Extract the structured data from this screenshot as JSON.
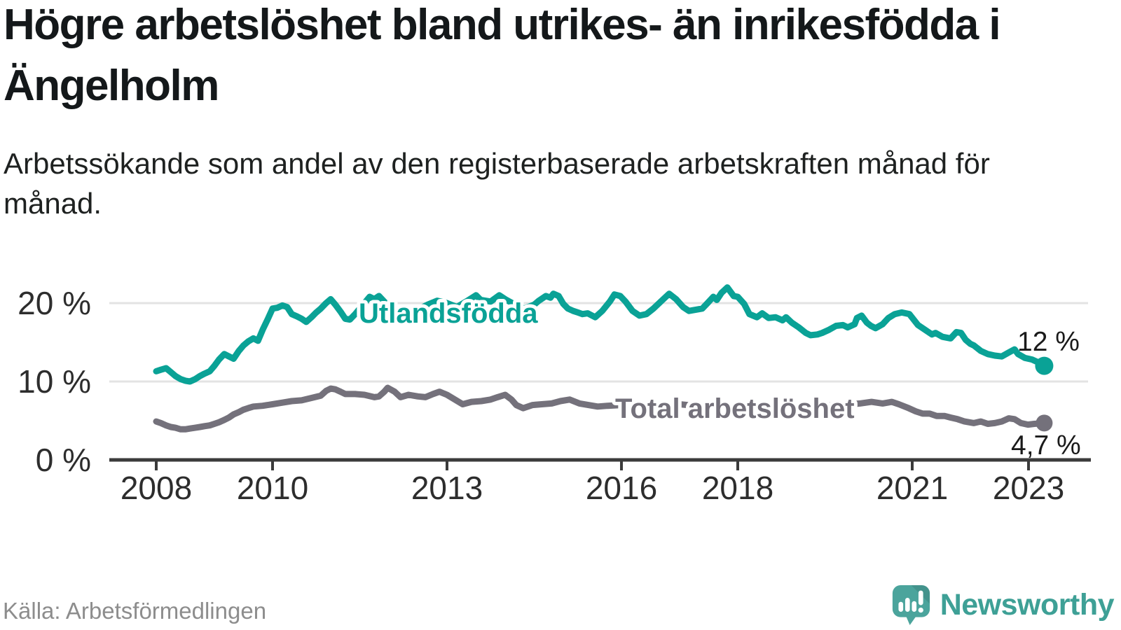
{
  "header": {
    "title": "Högre arbetslöshet bland utrikes- än inrikesfödda i Ängelholm",
    "subtitle": "Arbetssökande som andel av den registerbaserade arbetskraften månad för månad."
  },
  "footer": {
    "source": "Källa: Arbetsförmedlingen",
    "brand": "Newsworthy"
  },
  "colors": {
    "accent_teal": "#0AA296",
    "series_gray": "#74717B",
    "axis_line": "#3B3B3B",
    "tick_label": "#2D2D2D",
    "gridline": "#E3E3E3",
    "end_label_text": "#1A1A1A",
    "logo_bubble": "#4BA49C",
    "logo_bars": "#FFFFFF"
  },
  "chart_data": {
    "type": "line",
    "title": "Högre arbetslöshet bland utrikes- än inrikesfödda i Ängelholm",
    "subtitle": "Arbetssökande som andel av den registerbaserade arbetskraften månad för månad.",
    "xlabel": "",
    "ylabel": "",
    "grid": "horizontal",
    "legend_position": "inline-labels",
    "x_axis": {
      "unit": "year",
      "range": [
        2008,
        2023.3
      ],
      "ticks": [
        2008,
        2010,
        2013,
        2016,
        2018,
        2021,
        2023
      ],
      "tick_labels": [
        "2008",
        "2010",
        "2013",
        "2016",
        "2018",
        "2021",
        "2023"
      ]
    },
    "y_axis": {
      "unit": "%",
      "range": [
        0,
        22.5
      ],
      "ticks": [
        0,
        10,
        20
      ],
      "tick_labels": [
        "0 %",
        "10 %",
        "20 %"
      ]
    },
    "series": [
      {
        "name": "Utlandsfödda",
        "color": "#0AA296",
        "end_value": 12,
        "end_label": "12 %",
        "points": [
          [
            2008.0,
            11.3
          ],
          [
            2008.08,
            11.5
          ],
          [
            2008.17,
            11.7
          ],
          [
            2008.25,
            11.2
          ],
          [
            2008.33,
            10.7
          ],
          [
            2008.42,
            10.3
          ],
          [
            2008.5,
            10.1
          ],
          [
            2008.58,
            10.0
          ],
          [
            2008.67,
            10.3
          ],
          [
            2008.75,
            10.7
          ],
          [
            2008.83,
            11.0
          ],
          [
            2008.92,
            11.3
          ],
          [
            2009.0,
            12.0
          ],
          [
            2009.08,
            12.8
          ],
          [
            2009.17,
            13.5
          ],
          [
            2009.25,
            13.2
          ],
          [
            2009.33,
            12.9
          ],
          [
            2009.42,
            13.9
          ],
          [
            2009.5,
            14.6
          ],
          [
            2009.58,
            15.1
          ],
          [
            2009.67,
            15.5
          ],
          [
            2009.75,
            15.2
          ],
          [
            2009.83,
            16.6
          ],
          [
            2009.92,
            18.0
          ],
          [
            2010.0,
            19.3
          ],
          [
            2010.08,
            19.4
          ],
          [
            2010.17,
            19.7
          ],
          [
            2010.25,
            19.5
          ],
          [
            2010.33,
            18.6
          ],
          [
            2010.42,
            18.3
          ],
          [
            2010.5,
            18.0
          ],
          [
            2010.58,
            17.6
          ],
          [
            2010.67,
            18.2
          ],
          [
            2010.75,
            18.8
          ],
          [
            2010.83,
            19.3
          ],
          [
            2010.92,
            20.0
          ],
          [
            2011.0,
            20.5
          ],
          [
            2011.08,
            19.8
          ],
          [
            2011.17,
            18.9
          ],
          [
            2011.25,
            18.0
          ],
          [
            2011.33,
            17.9
          ],
          [
            2011.42,
            18.6
          ],
          [
            2011.5,
            19.3
          ],
          [
            2011.58,
            20.0
          ],
          [
            2011.67,
            20.8
          ],
          [
            2011.75,
            20.5
          ],
          [
            2011.83,
            20.9
          ],
          [
            2011.92,
            20.2
          ],
          [
            2012.0,
            19.6
          ],
          [
            2012.17,
            19.0
          ],
          [
            2012.33,
            18.7
          ],
          [
            2012.5,
            19.2
          ],
          [
            2012.67,
            19.8
          ],
          [
            2012.83,
            20.3
          ],
          [
            2013.0,
            20.0
          ],
          [
            2013.17,
            19.5
          ],
          [
            2013.33,
            20.2
          ],
          [
            2013.5,
            21.0
          ],
          [
            2013.58,
            20.4
          ],
          [
            2013.75,
            20.2
          ],
          [
            2013.9,
            21.0
          ],
          [
            2014.0,
            20.5
          ],
          [
            2014.17,
            19.8
          ],
          [
            2014.33,
            19.3
          ],
          [
            2014.5,
            19.8
          ],
          [
            2014.58,
            20.3
          ],
          [
            2014.7,
            20.9
          ],
          [
            2014.78,
            20.7
          ],
          [
            2014.83,
            21.2
          ],
          [
            2014.92,
            20.9
          ],
          [
            2015.0,
            19.9
          ],
          [
            2015.08,
            19.3
          ],
          [
            2015.17,
            19.0
          ],
          [
            2015.25,
            18.8
          ],
          [
            2015.33,
            18.6
          ],
          [
            2015.42,
            18.7
          ],
          [
            2015.55,
            18.2
          ],
          [
            2015.67,
            19.0
          ],
          [
            2015.8,
            20.2
          ],
          [
            2015.88,
            21.1
          ],
          [
            2015.98,
            20.9
          ],
          [
            2016.07,
            20.2
          ],
          [
            2016.19,
            19.0
          ],
          [
            2016.31,
            18.4
          ],
          [
            2016.43,
            18.6
          ],
          [
            2016.55,
            19.3
          ],
          [
            2016.72,
            20.5
          ],
          [
            2016.82,
            21.2
          ],
          [
            2016.94,
            20.5
          ],
          [
            2017.06,
            19.5
          ],
          [
            2017.16,
            19.0
          ],
          [
            2017.39,
            19.3
          ],
          [
            2017.48,
            20.0
          ],
          [
            2017.58,
            20.8
          ],
          [
            2017.64,
            20.4
          ],
          [
            2017.72,
            21.3
          ],
          [
            2017.82,
            22.0
          ],
          [
            2017.93,
            20.9
          ],
          [
            2018.0,
            20.8
          ],
          [
            2018.11,
            19.9
          ],
          [
            2018.2,
            18.6
          ],
          [
            2018.33,
            18.2
          ],
          [
            2018.42,
            18.7
          ],
          [
            2018.53,
            18.1
          ],
          [
            2018.65,
            18.2
          ],
          [
            2018.77,
            17.8
          ],
          [
            2018.83,
            18.2
          ],
          [
            2018.93,
            17.5
          ],
          [
            2019.05,
            16.9
          ],
          [
            2019.17,
            16.2
          ],
          [
            2019.25,
            15.9
          ],
          [
            2019.37,
            16.0
          ],
          [
            2019.45,
            16.2
          ],
          [
            2019.57,
            16.6
          ],
          [
            2019.69,
            17.1
          ],
          [
            2019.81,
            17.2
          ],
          [
            2019.89,
            16.9
          ],
          [
            2020.01,
            17.3
          ],
          [
            2020.05,
            18.1
          ],
          [
            2020.13,
            18.4
          ],
          [
            2020.22,
            17.5
          ],
          [
            2020.29,
            17.1
          ],
          [
            2020.37,
            16.8
          ],
          [
            2020.49,
            17.3
          ],
          [
            2020.59,
            18.1
          ],
          [
            2020.7,
            18.6
          ],
          [
            2020.82,
            18.8
          ],
          [
            2020.95,
            18.6
          ],
          [
            2021.1,
            17.2
          ],
          [
            2021.22,
            16.6
          ],
          [
            2021.34,
            16.0
          ],
          [
            2021.4,
            16.2
          ],
          [
            2021.52,
            15.7
          ],
          [
            2021.66,
            15.5
          ],
          [
            2021.76,
            16.3
          ],
          [
            2021.84,
            16.2
          ],
          [
            2021.92,
            15.3
          ],
          [
            2022.0,
            14.8
          ],
          [
            2022.06,
            14.6
          ],
          [
            2022.18,
            13.9
          ],
          [
            2022.3,
            13.5
          ],
          [
            2022.42,
            13.3
          ],
          [
            2022.54,
            13.2
          ],
          [
            2022.66,
            13.7
          ],
          [
            2022.76,
            14.1
          ],
          [
            2022.82,
            13.5
          ],
          [
            2022.94,
            13.0
          ],
          [
            2023.06,
            12.8
          ],
          [
            2023.18,
            12.4
          ],
          [
            2023.27,
            12.0
          ]
        ]
      },
      {
        "name": "Total arbetslöshet",
        "color": "#74717B",
        "end_value": 4.7,
        "end_label": "4,7 %",
        "points": [
          [
            2008.0,
            4.9
          ],
          [
            2008.08,
            4.7
          ],
          [
            2008.17,
            4.4
          ],
          [
            2008.25,
            4.2
          ],
          [
            2008.33,
            4.1
          ],
          [
            2008.42,
            3.9
          ],
          [
            2008.5,
            3.9
          ],
          [
            2008.58,
            4.0
          ],
          [
            2008.67,
            4.1
          ],
          [
            2008.75,
            4.2
          ],
          [
            2008.83,
            4.3
          ],
          [
            2008.92,
            4.4
          ],
          [
            2009.0,
            4.6
          ],
          [
            2009.08,
            4.8
          ],
          [
            2009.17,
            5.1
          ],
          [
            2009.25,
            5.4
          ],
          [
            2009.33,
            5.8
          ],
          [
            2009.42,
            6.1
          ],
          [
            2009.5,
            6.4
          ],
          [
            2009.58,
            6.6
          ],
          [
            2009.67,
            6.8
          ],
          [
            2009.83,
            6.9
          ],
          [
            2010.0,
            7.1
          ],
          [
            2010.17,
            7.3
          ],
          [
            2010.33,
            7.5
          ],
          [
            2010.5,
            7.6
          ],
          [
            2010.67,
            7.9
          ],
          [
            2010.83,
            8.2
          ],
          [
            2010.92,
            8.8
          ],
          [
            2011.0,
            9.1
          ],
          [
            2011.08,
            9.0
          ],
          [
            2011.17,
            8.7
          ],
          [
            2011.25,
            8.4
          ],
          [
            2011.42,
            8.4
          ],
          [
            2011.58,
            8.3
          ],
          [
            2011.75,
            8.0
          ],
          [
            2011.83,
            8.1
          ],
          [
            2011.92,
            8.7
          ],
          [
            2011.98,
            9.2
          ],
          [
            2012.1,
            8.7
          ],
          [
            2012.2,
            8.0
          ],
          [
            2012.34,
            8.3
          ],
          [
            2012.5,
            8.1
          ],
          [
            2012.63,
            8.0
          ],
          [
            2012.76,
            8.4
          ],
          [
            2012.87,
            8.7
          ],
          [
            2013.0,
            8.3
          ],
          [
            2013.18,
            7.5
          ],
          [
            2013.27,
            7.1
          ],
          [
            2013.42,
            7.4
          ],
          [
            2013.59,
            7.5
          ],
          [
            2013.75,
            7.7
          ],
          [
            2013.87,
            8.0
          ],
          [
            2014.0,
            8.3
          ],
          [
            2014.11,
            7.7
          ],
          [
            2014.19,
            7.0
          ],
          [
            2014.31,
            6.6
          ],
          [
            2014.47,
            7.0
          ],
          [
            2014.63,
            7.1
          ],
          [
            2014.8,
            7.2
          ],
          [
            2014.95,
            7.5
          ],
          [
            2015.11,
            7.7
          ],
          [
            2015.28,
            7.2
          ],
          [
            2015.43,
            7.0
          ],
          [
            2015.59,
            6.8
          ],
          [
            2015.76,
            6.9
          ],
          [
            2016.0,
            7.0
          ],
          [
            2016.3,
            6.8
          ],
          [
            2016.6,
            7.0
          ],
          [
            2017.0,
            7.1
          ],
          [
            2017.4,
            6.8
          ],
          [
            2017.8,
            6.9
          ],
          [
            2018.2,
            6.8
          ],
          [
            2018.6,
            6.7
          ],
          [
            2019.0,
            6.8
          ],
          [
            2019.4,
            6.9
          ],
          [
            2019.8,
            7.0
          ],
          [
            2020.1,
            7.2
          ],
          [
            2020.3,
            7.4
          ],
          [
            2020.49,
            7.2
          ],
          [
            2020.65,
            7.4
          ],
          [
            2020.77,
            7.1
          ],
          [
            2020.94,
            6.6
          ],
          [
            2021.06,
            6.2
          ],
          [
            2021.18,
            5.9
          ],
          [
            2021.3,
            5.9
          ],
          [
            2021.42,
            5.6
          ],
          [
            2021.56,
            5.6
          ],
          [
            2021.66,
            5.4
          ],
          [
            2021.78,
            5.2
          ],
          [
            2021.9,
            4.9
          ],
          [
            2022.06,
            4.7
          ],
          [
            2022.18,
            4.9
          ],
          [
            2022.3,
            4.6
          ],
          [
            2022.42,
            4.7
          ],
          [
            2022.54,
            4.9
          ],
          [
            2022.66,
            5.3
          ],
          [
            2022.76,
            5.2
          ],
          [
            2022.87,
            4.7
          ],
          [
            2022.99,
            4.5
          ],
          [
            2023.1,
            4.6
          ],
          [
            2023.27,
            4.7
          ]
        ]
      }
    ]
  }
}
